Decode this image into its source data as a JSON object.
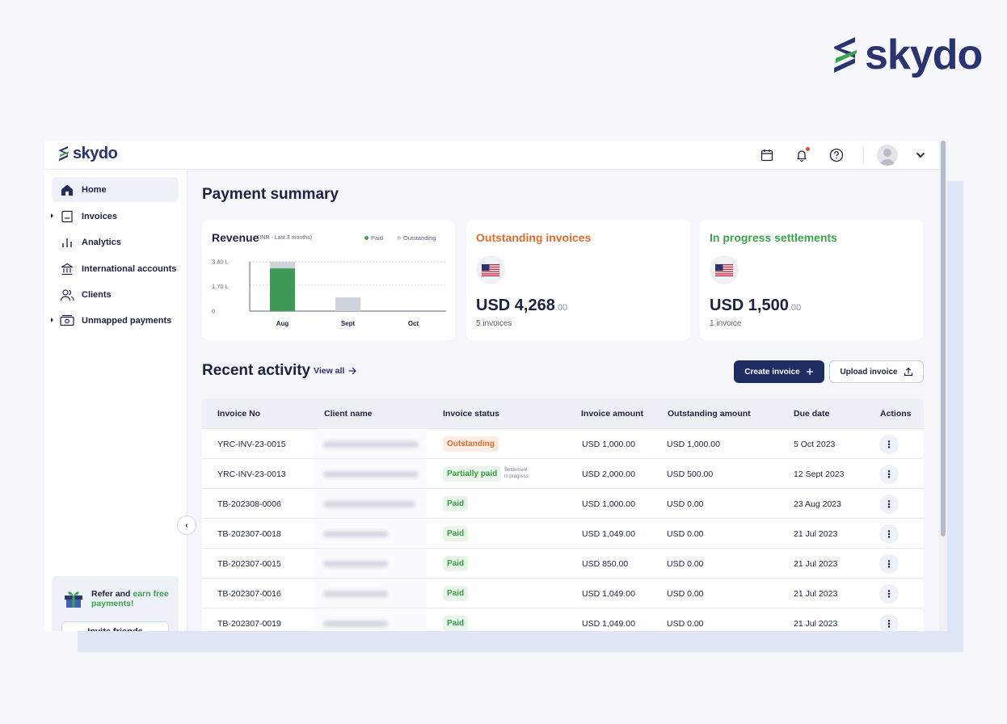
{
  "brand": {
    "name": "skydo"
  },
  "colors": {
    "brand_navy": "#2a3470",
    "brand_green": "#3aa54a",
    "primary_button": "#1f2d62",
    "outstanding_orange": "#e06b2d",
    "paid_green": "#3a9a44"
  },
  "topbar_icons": [
    "calendar-icon",
    "bell-icon",
    "help-icon",
    "avatar",
    "chevron-down-icon"
  ],
  "sidebar": {
    "items": [
      {
        "label": "Home",
        "icon": "home-icon",
        "active": true
      },
      {
        "label": "Invoices",
        "icon": "invoice-icon"
      },
      {
        "label": "Analytics",
        "icon": "analytics-icon"
      },
      {
        "label": "International accounts",
        "icon": "bank-icon"
      },
      {
        "label": "Clients",
        "icon": "clients-icon"
      },
      {
        "label": "Unmapped payments",
        "icon": "payments-icon"
      }
    ],
    "refer": {
      "text_a": "Refer and ",
      "text_b": "earn free payments!",
      "button": "Invite friends"
    }
  },
  "summary": {
    "title": "Payment summary",
    "revenue": {
      "title": "Revenue",
      "subtitle": "(INR - Last 3 months)",
      "legend_paid": "Paid",
      "legend_outstanding": "Outstanding"
    },
    "outstanding": {
      "title": "Outstanding invoices",
      "currency": "USD",
      "amount": "4,268",
      "cents": ".00",
      "sub": "5 invoices"
    },
    "in_progress": {
      "title": "In progress settlements",
      "currency": "USD",
      "amount": "1,500",
      "cents": ".00",
      "sub": "1 invoice"
    }
  },
  "chart_data": {
    "type": "bar",
    "title": "Revenue",
    "subtitle": "(INR - Last 3 months)",
    "categories": [
      "Aug",
      "Sept",
      "Oct"
    ],
    "y_ticks": [
      "3.40 L",
      "1.70 L",
      "0"
    ],
    "ylim": [
      0,
      3.4
    ],
    "series": [
      {
        "name": "Paid",
        "color": "#3f9a55",
        "values": [
          2.95,
          0,
          0
        ]
      },
      {
        "name": "Outstanding",
        "color": "#cdd2db",
        "values": [
          0.45,
          0.95,
          0
        ]
      }
    ],
    "legend": "top-right",
    "grid": true
  },
  "recent": {
    "title": "Recent activity",
    "view_all": "View all",
    "create_button": "Create invoice",
    "upload_button": "Upload invoice",
    "columns": [
      "Invoice No",
      "Client name",
      "Invoice status",
      "Invoice amount",
      "Outstanding amount",
      "Due date",
      "Actions"
    ],
    "settlement_note_1": "Settlement",
    "settlement_note_2": "in progress",
    "rows": [
      {
        "invoice": "YRC-INV-23-0015",
        "status": "Outstanding",
        "status_kind": "outstanding",
        "amount": "USD 1,000.00",
        "outstanding": "USD 1,000.00",
        "due": "5 Oct 2023"
      },
      {
        "invoice": "YRC-INV-23-0013",
        "status": "Partially paid",
        "status_kind": "partial",
        "amount": "USD 2,000.00",
        "outstanding": "USD 500.00",
        "due": "12 Sept 2023"
      },
      {
        "invoice": "TB-202308-0006",
        "status": "Paid",
        "status_kind": "paid",
        "amount": "USD 1,000.00",
        "outstanding": "USD 0.00",
        "due": "23 Aug 2023"
      },
      {
        "invoice": "TB-202307-0018",
        "status": "Paid",
        "status_kind": "paid",
        "amount": "USD 1,049.00",
        "outstanding": "USD 0.00",
        "due": "21 Jul 2023"
      },
      {
        "invoice": "TB-202307-0015",
        "status": "Paid",
        "status_kind": "paid",
        "amount": "USD 850.00",
        "outstanding": "USD 0.00",
        "due": "21 Jul 2023"
      },
      {
        "invoice": "TB-202307-0016",
        "status": "Paid",
        "status_kind": "paid",
        "amount": "USD 1,049.00",
        "outstanding": "USD 0.00",
        "due": "21 Jul 2023"
      },
      {
        "invoice": "TB-202307-0019",
        "status": "Paid",
        "status_kind": "paid",
        "amount": "USD 1,049.00",
        "outstanding": "USD 0.00",
        "due": "21 Jul 2023"
      }
    ]
  }
}
